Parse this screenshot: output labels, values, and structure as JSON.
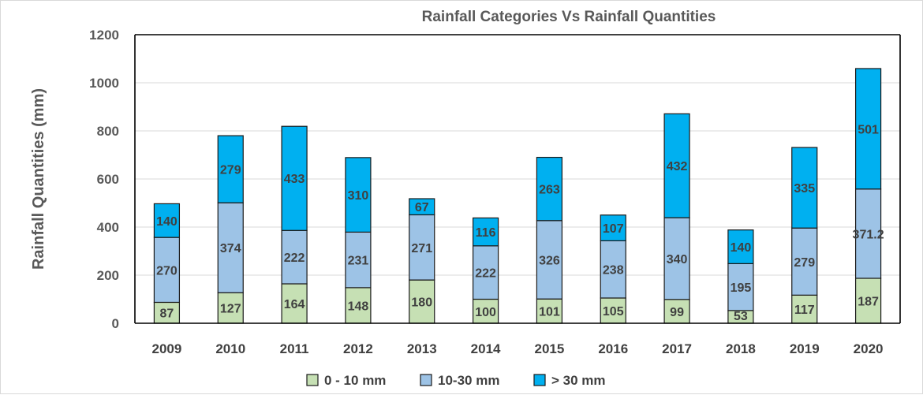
{
  "chart_data": {
    "type": "bar",
    "stacked": true,
    "title": "Rainfall Categories Vs Rainfall Quantities",
    "ylabel": "Rainfall Quantities (mm)",
    "xlabel": "",
    "ylim": [
      0,
      1200
    ],
    "yticks": [
      0,
      200,
      400,
      600,
      800,
      1000,
      1200
    ],
    "grid": true,
    "legend_position": "bottom",
    "categories": [
      "2009",
      "2010",
      "2011",
      "2012",
      "2013",
      "2014",
      "2015",
      "2016",
      "2017",
      "2018",
      "2019",
      "2020"
    ],
    "series": [
      {
        "name": "0 - 10 mm",
        "color": "#c6e0b4",
        "values": [
          87,
          127,
          164,
          148,
          180,
          100,
          101,
          105,
          99,
          53,
          117,
          187
        ],
        "labels": [
          "87",
          "127",
          "164",
          "148",
          "180",
          "100",
          "101",
          "105",
          "99",
          "53",
          "117",
          "187"
        ]
      },
      {
        "name": "10-30 mm",
        "color": "#9dc3e6",
        "values": [
          270,
          374,
          222,
          231,
          271,
          222,
          326,
          238,
          340,
          195,
          279,
          371.2
        ],
        "labels": [
          "270",
          "374",
          "222",
          "231",
          "271",
          "222",
          "326",
          "238",
          "340",
          "195",
          "279",
          "371.2"
        ]
      },
      {
        "name": "> 30 mm",
        "color": "#00b0f0",
        "values": [
          140,
          279,
          433,
          310,
          67,
          116,
          263,
          107,
          432,
          140,
          335,
          501
        ],
        "labels": [
          "140",
          "279",
          "433",
          "310",
          "67",
          "116",
          "263",
          "107",
          "432",
          "140",
          "335",
          "501"
        ]
      }
    ]
  }
}
